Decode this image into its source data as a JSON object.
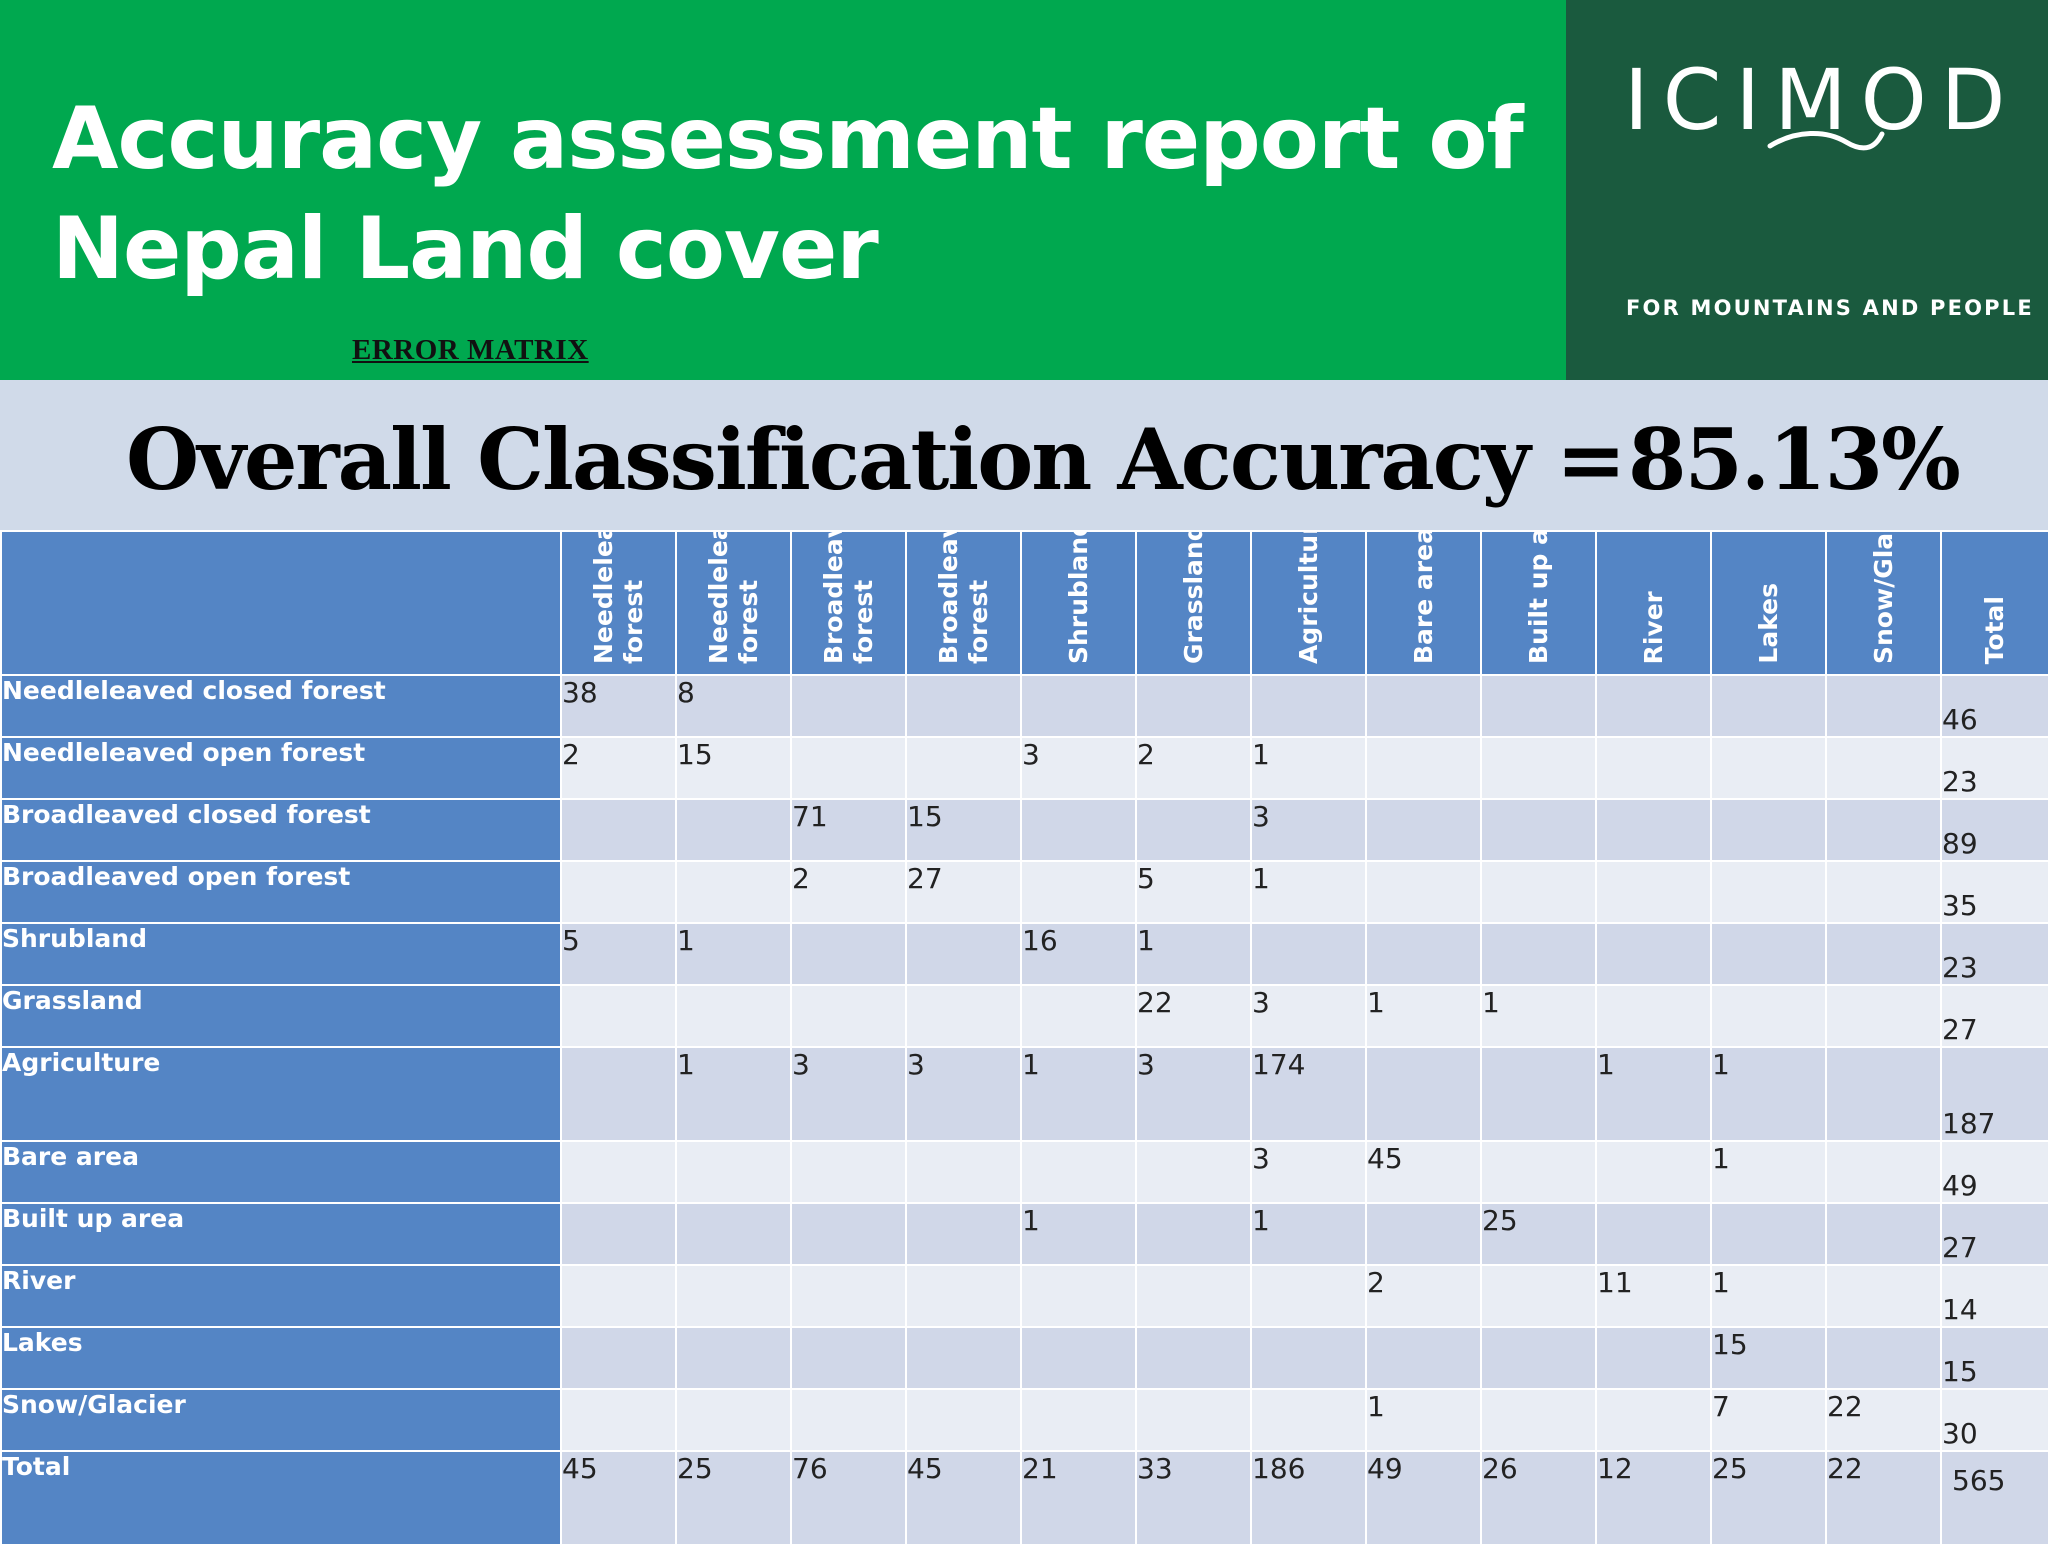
{
  "header": {
    "title_line1": "Accuracy assessment report of",
    "title_line2": "Nepal Land cover",
    "subtitle": "ERROR MATRIX"
  },
  "logo": {
    "word": "ICIMOD",
    "tagline": "FOR MOUNTAINS AND PEOPLE"
  },
  "accuracy": {
    "label": "Overall Classification Accuracy =",
    "value": "85.13%"
  },
  "matrix": {
    "columns": [
      "Needleleav\nforest",
      "Needleleav\nforest",
      "Broadleave\nforest",
      "Broadleave\nforest",
      "Shrubland",
      "Grassland",
      "Agriculture",
      "Bare area",
      "Built up ar",
      "River",
      "Lakes",
      "Snow/Glac",
      "Total"
    ],
    "rows": [
      {
        "label": "Needleleaved closed forest",
        "cells": [
          "38",
          "8",
          "",
          "",
          "",
          "",
          "",
          "",
          "",
          "",
          "",
          ""
        ],
        "total": "46"
      },
      {
        "label": "Needleleaved open forest",
        "cells": [
          "2",
          "15",
          "",
          "",
          "3",
          "2",
          "1",
          "",
          "",
          "",
          "",
          ""
        ],
        "total": "23"
      },
      {
        "label": "Broadleaved closed forest",
        "cells": [
          "",
          "",
          "71",
          "15",
          "",
          "",
          "3",
          "",
          "",
          "",
          "",
          ""
        ],
        "total": "89"
      },
      {
        "label": "Broadleaved open forest",
        "cells": [
          "",
          "",
          "2",
          "27",
          "",
          "5",
          "1",
          "",
          "",
          "",
          "",
          ""
        ],
        "total": "35"
      },
      {
        "label": "Shrubland",
        "cells": [
          "5",
          "1",
          "",
          "",
          "16",
          "1",
          "",
          "",
          "",
          "",
          "",
          ""
        ],
        "total": "23"
      },
      {
        "label": "Grassland",
        "cells": [
          "",
          "",
          "",
          "",
          "",
          "22",
          "3",
          "1",
          "1",
          "",
          "",
          ""
        ],
        "total": "27"
      },
      {
        "label": "Agriculture",
        "cells": [
          "",
          "1",
          "3",
          "3",
          "1",
          "3",
          "174",
          "",
          "",
          "1",
          "1",
          ""
        ],
        "total": "187"
      },
      {
        "label": "Bare area",
        "cells": [
          "",
          "",
          "",
          "",
          "",
          "",
          "3",
          "45",
          "",
          "",
          "1",
          ""
        ],
        "total": "49"
      },
      {
        "label": "Built up area",
        "cells": [
          "",
          "",
          "",
          "",
          "1",
          "",
          "1",
          "",
          "25",
          "",
          "",
          ""
        ],
        "total": "27"
      },
      {
        "label": "River",
        "cells": [
          "",
          "",
          "",
          "",
          "",
          "",
          "",
          "2",
          "",
          "11",
          "1",
          ""
        ],
        "total": "14"
      },
      {
        "label": "Lakes",
        "cells": [
          "",
          "",
          "",
          "",
          "",
          "",
          "",
          "",
          "",
          "",
          "15",
          ""
        ],
        "total": "15"
      },
      {
        "label": "Snow/Glacier",
        "cells": [
          "",
          "",
          "",
          "",
          "",
          "",
          "",
          "1",
          "",
          "",
          "7",
          "22"
        ],
        "total": "30"
      }
    ],
    "totals_row": {
      "label": "Total",
      "cells": [
        "45",
        "25",
        "76",
        "45",
        "21",
        "33",
        "186",
        "49",
        "26",
        "12",
        "25",
        "22"
      ],
      "total": "565"
    }
  },
  "colors": {
    "header_green": "#00a84f",
    "logo_green": "#1a5a3e",
    "table_blue": "#5485c5",
    "band_gray_blue": "#d0dae9"
  }
}
